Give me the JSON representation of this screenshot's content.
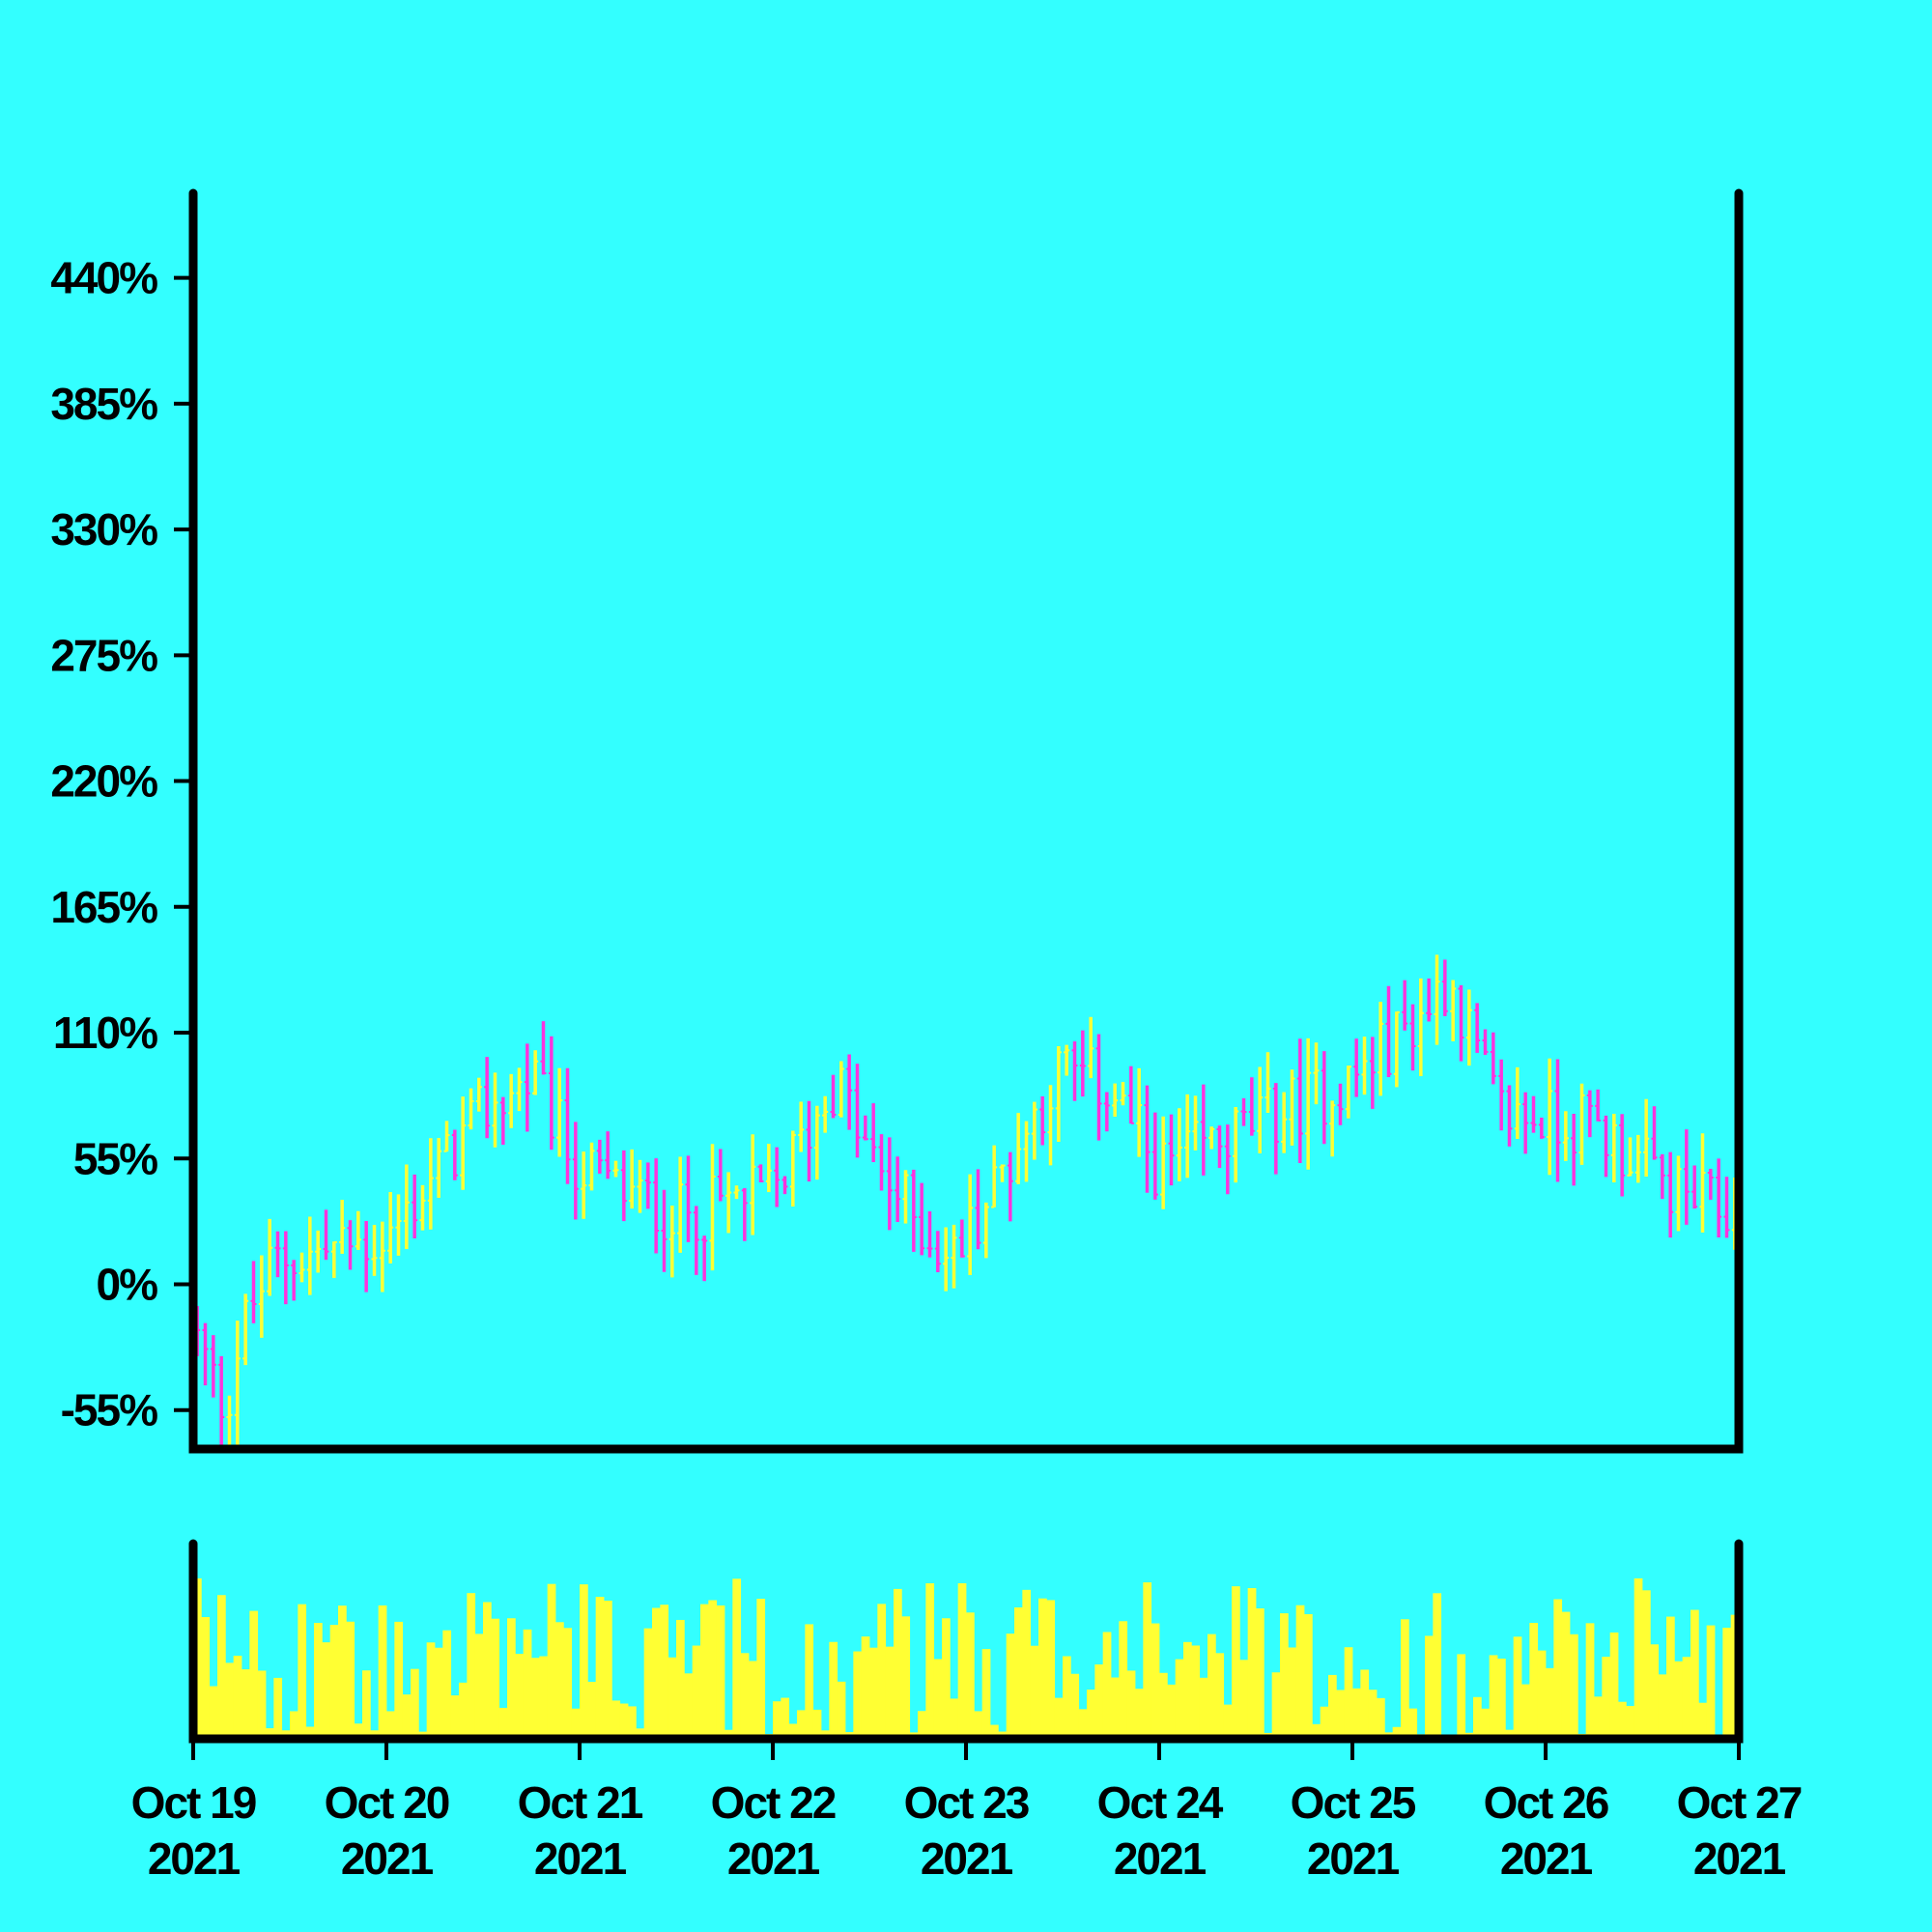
{
  "chart_data": {
    "type": "ohlc",
    "title": "",
    "xlabel": "",
    "ylabel": "",
    "y_ticks": [
      "-55%",
      "0%",
      "55%",
      "110%",
      "165%",
      "220%",
      "275%",
      "330%",
      "385%",
      "440%"
    ],
    "y_tick_values": [
      -55,
      0,
      55,
      110,
      165,
      220,
      275,
      330,
      385,
      440
    ],
    "ylim": [
      -72,
      477
    ],
    "x_ticks": [
      {
        "month_day": "Oct 19",
        "year": "2021"
      },
      {
        "month_day": "Oct 20",
        "year": "2021"
      },
      {
        "month_day": "Oct 21",
        "year": "2021"
      },
      {
        "month_day": "Oct 22",
        "year": "2021"
      },
      {
        "month_day": "Oct 23",
        "year": "2021"
      },
      {
        "month_day": "Oct 24",
        "year": "2021"
      },
      {
        "month_day": "Oct 25",
        "year": "2021"
      },
      {
        "month_day": "Oct 26",
        "year": "2021"
      },
      {
        "month_day": "Oct 27",
        "year": "2021"
      }
    ],
    "x_range": [
      "2021-10-19",
      "2021-10-27"
    ],
    "interval_hours": 1,
    "bars_count": 192,
    "up_color": "#ffff33",
    "down_color": "#ff33dd",
    "volume_color": "#ffff33",
    "background": "#33ffff",
    "close_anchors": [
      {
        "t": "2021-10-19T00:00",
        "close": -20
      },
      {
        "t": "2021-10-19T04:00",
        "close": -55
      },
      {
        "t": "2021-10-19T06:00",
        "close": -20
      },
      {
        "t": "2021-10-19T10:00",
        "close": 10
      },
      {
        "t": "2021-10-20T00:00",
        "close": 20
      },
      {
        "t": "2021-10-20T12:00",
        "close": 75
      },
      {
        "t": "2021-10-20T18:00",
        "close": 90
      },
      {
        "t": "2021-10-21T00:00",
        "close": 50
      },
      {
        "t": "2021-10-21T12:00",
        "close": 30
      },
      {
        "t": "2021-10-22T00:00",
        "close": 40
      },
      {
        "t": "2021-10-22T08:00",
        "close": 90
      },
      {
        "t": "2021-10-22T12:00",
        "close": 55
      },
      {
        "t": "2021-10-22T22:00",
        "close": 10
      },
      {
        "t": "2021-10-23T03:00",
        "close": 40
      },
      {
        "t": "2021-10-23T12:00",
        "close": 95
      },
      {
        "t": "2021-10-23T18:00",
        "close": 85
      },
      {
        "t": "2021-10-24T00:00",
        "close": 50
      },
      {
        "t": "2021-10-24T12:00",
        "close": 70
      },
      {
        "t": "2021-10-25T00:00",
        "close": 90
      },
      {
        "t": "2021-10-25T09:00",
        "close": 120
      },
      {
        "t": "2021-10-25T12:00",
        "close": 135
      },
      {
        "t": "2021-10-25T18:00",
        "close": 75
      },
      {
        "t": "2021-10-26T06:00",
        "close": 70
      },
      {
        "t": "2021-10-26T16:00",
        "close": 40
      },
      {
        "t": "2021-10-27T00:00",
        "close": 30
      }
    ],
    "volume": {
      "min_fraction": 0.02,
      "max_fraction": 0.95,
      "typical_fraction": 0.55
    }
  }
}
